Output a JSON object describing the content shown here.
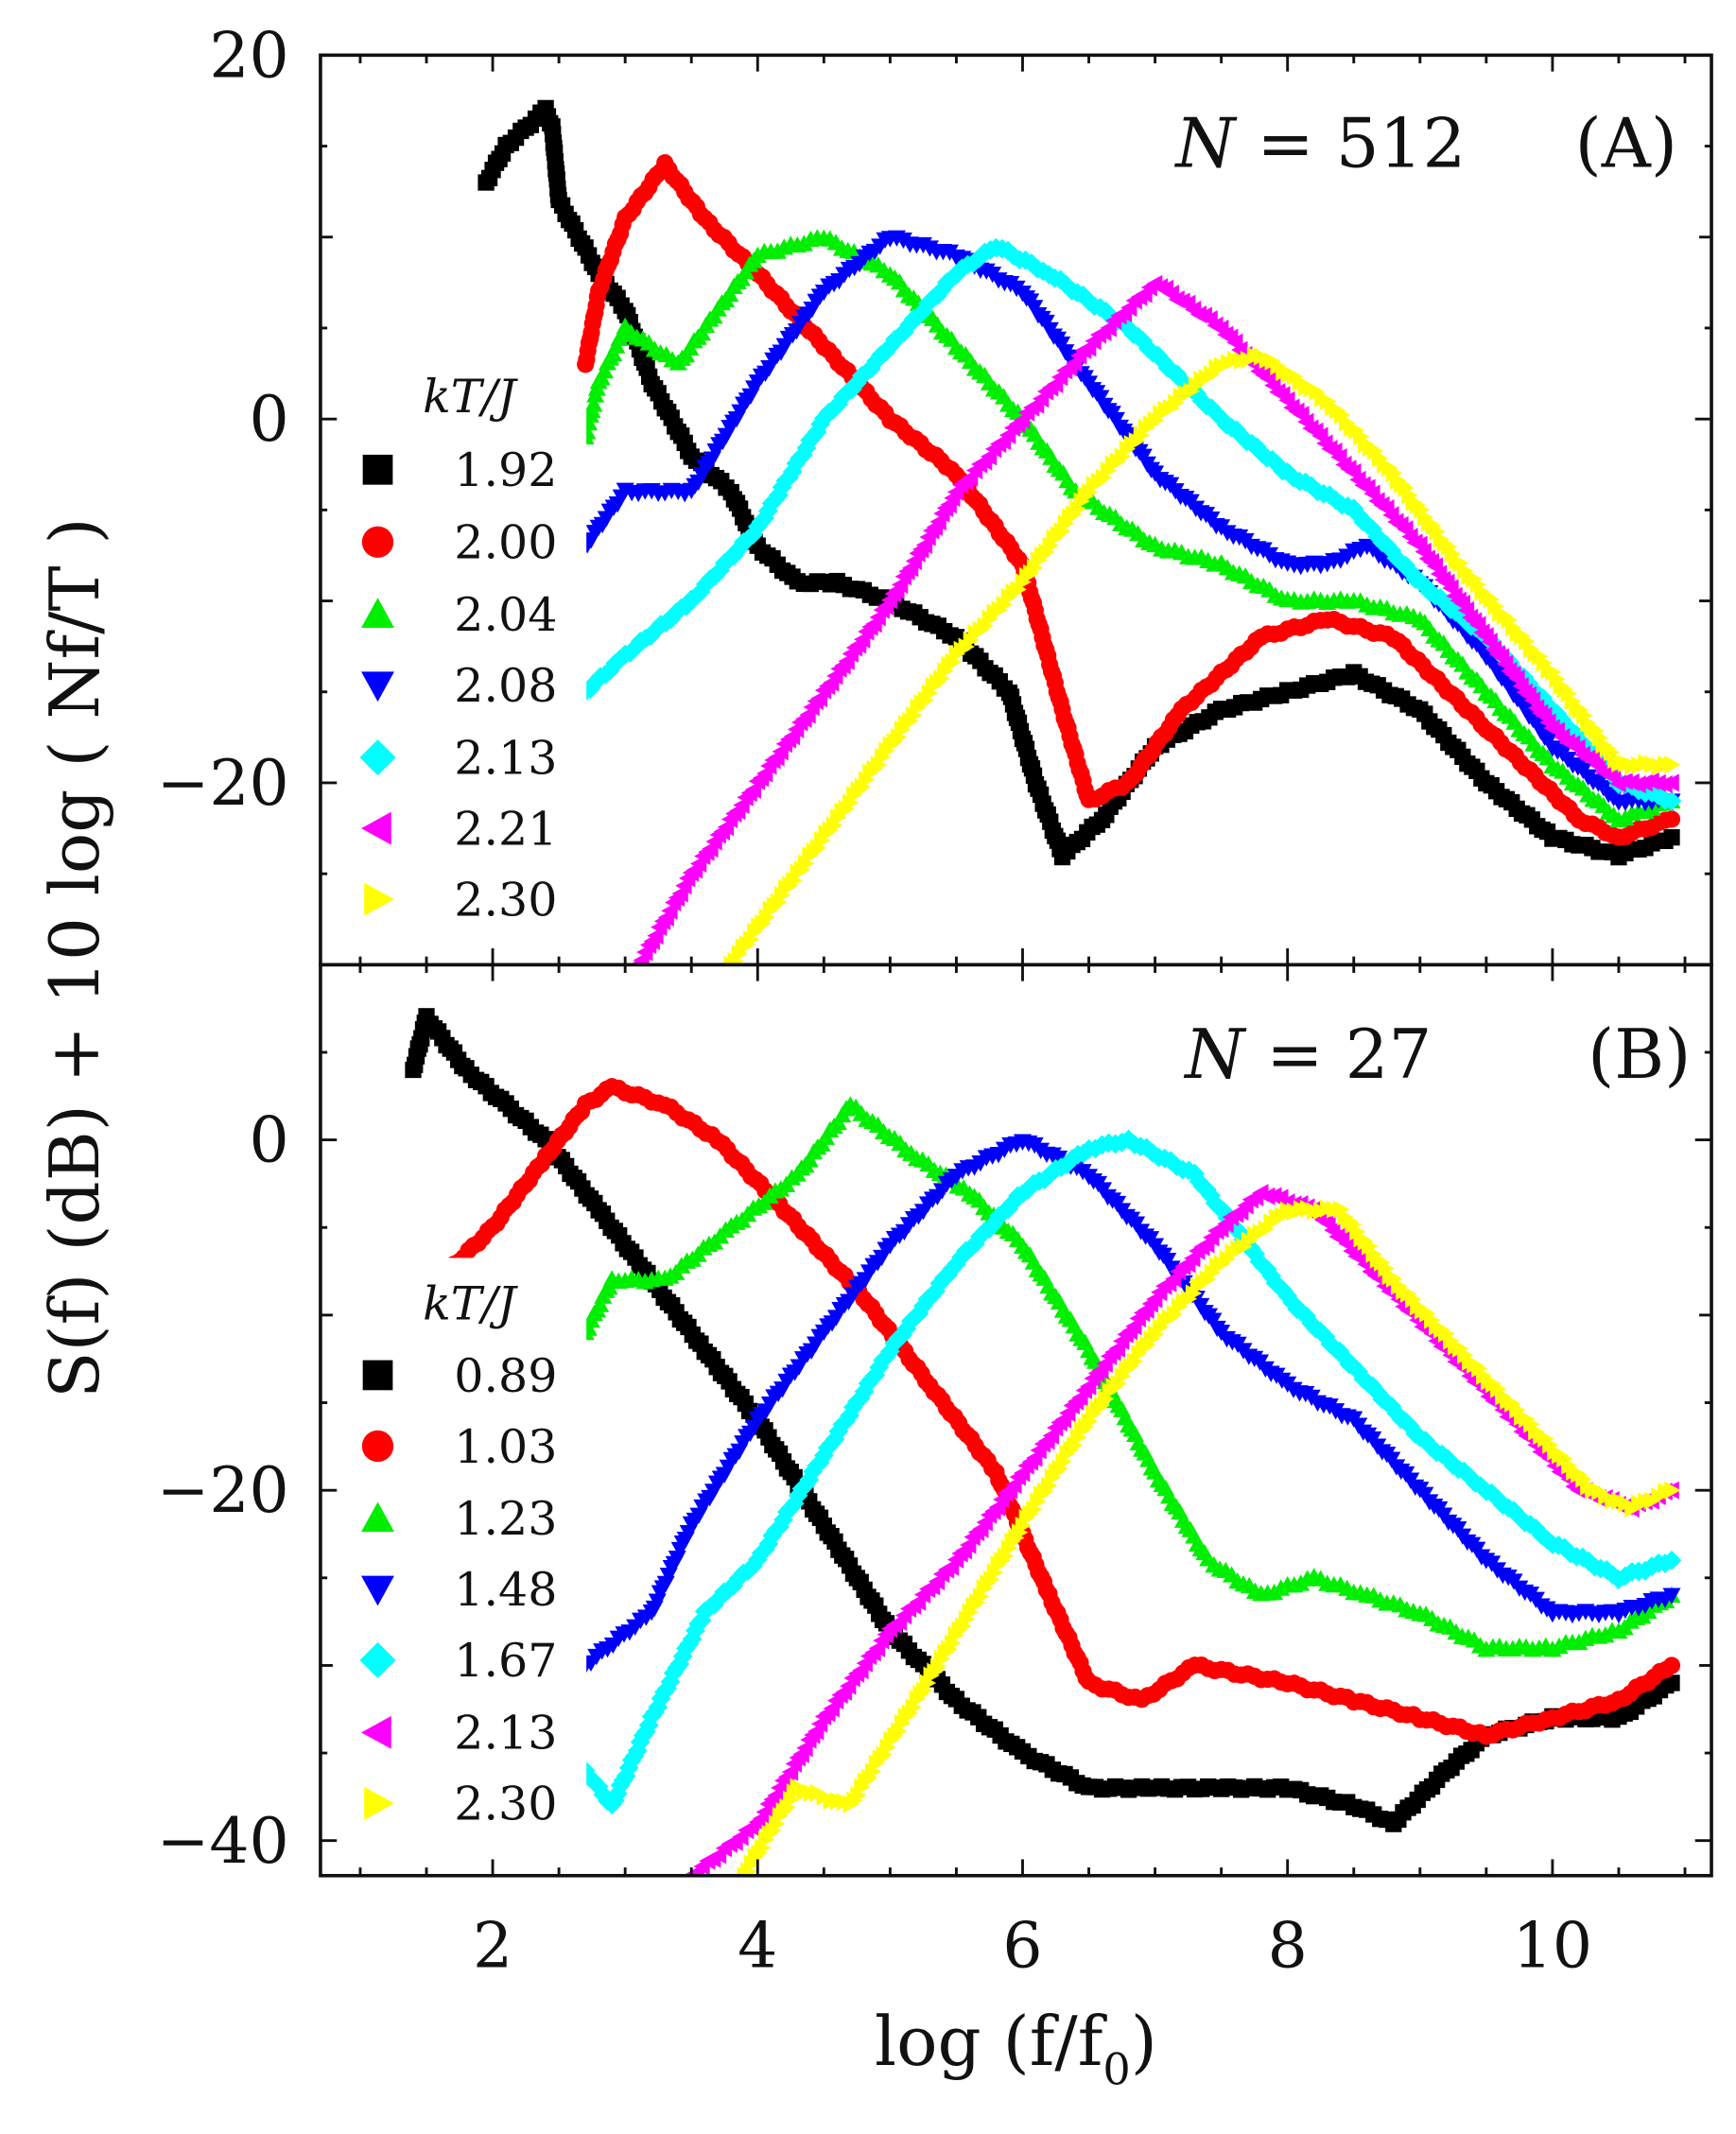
{
  "y_label": "S(f) (dB) + 10 log ( Nf/T )",
  "x_label": "log (f/f",
  "x_label_sub": "0",
  "x_label_end": ")",
  "chart_data": [
    {
      "type": "scatter",
      "panel": "A",
      "annotation_n": "N = 512",
      "annotation_panel": "(A)",
      "legend_title": "kT/J",
      "legend_placement": "left",
      "xlim": [
        0.7,
        11.2
      ],
      "ylim": [
        -30,
        20
      ],
      "xticks": [
        2,
        4,
        6,
        8,
        10
      ],
      "yticks": [
        20,
        0,
        -20
      ],
      "ytick_labels": [
        "20",
        "0",
        "−20"
      ],
      "series": [
        {
          "name": "1.92",
          "color": "#000000",
          "marker": "square",
          "x": [
            1.95,
            2.1,
            2.4,
            2.45,
            2.5,
            2.8,
            3,
            3.2,
            3.5,
            3.8,
            4,
            4.3,
            4.6,
            5,
            5.5,
            5.9,
            6.1,
            6.3,
            6.6,
            7,
            7.5,
            8,
            8.5,
            9,
            9.5,
            10,
            10.5,
            10.9
          ],
          "y": [
            13,
            15,
            17,
            16,
            12,
            8,
            6,
            2,
            -2,
            -4,
            -7,
            -9,
            -9,
            -10,
            -12,
            -15,
            -20,
            -24,
            -22,
            -18,
            -16,
            -15,
            -14,
            -16,
            -20,
            -23,
            -24,
            -23
          ]
        },
        {
          "name": "2.00",
          "color": "#ff0000",
          "marker": "circle",
          "x": [
            2.7,
            2.8,
            3,
            3.3,
            3.6,
            4,
            4.5,
            5,
            5.5,
            6,
            6.3,
            6.5,
            6.8,
            7.2,
            7.8,
            8.3,
            8.8,
            9.5,
            10.2,
            10.5,
            10.9
          ],
          "y": [
            3,
            7,
            11,
            14,
            11,
            8,
            4,
            0,
            -3,
            -8,
            -16,
            -21,
            -20,
            -16,
            -12,
            -11,
            -12,
            -17,
            -22,
            -23,
            -22
          ]
        },
        {
          "name": "2.04",
          "color": "#00ee00",
          "marker": "triangle-up",
          "x": [
            2.7,
            2.8,
            3,
            3.4,
            3.7,
            4,
            4.5,
            5,
            5.5,
            6,
            6.4,
            7,
            7.5,
            8,
            8.5,
            9,
            9.5,
            10,
            10.5,
            10.9
          ],
          "y": [
            -1,
            2,
            5,
            3,
            6,
            9,
            10,
            8,
            4,
            0,
            -4,
            -7,
            -8,
            -10,
            -10,
            -11,
            -15,
            -19,
            -22,
            -21
          ]
        },
        {
          "name": "2.08",
          "color": "#0000ff",
          "marker": "triangle-down",
          "x": [
            2.6,
            2.8,
            3,
            3.5,
            4,
            4.5,
            5,
            5.5,
            6,
            6.5,
            7,
            7.5,
            8,
            8.3,
            8.6,
            9,
            9.5,
            10,
            10.5,
            10.9
          ],
          "y": [
            -8,
            -6,
            -4,
            -4,
            2,
            7,
            10,
            9,
            7,
            2,
            -3,
            -6,
            -8,
            -8,
            -7,
            -9,
            -13,
            -18,
            -21,
            -21
          ]
        },
        {
          "name": "2.13",
          "color": "#00ffff",
          "marker": "diamond",
          "x": [
            2.7,
            3,
            3.5,
            4,
            4.5,
            5,
            5.5,
            5.8,
            6.2,
            6.8,
            7.5,
            8,
            8.5,
            9,
            9.5,
            10,
            10.5,
            10.9
          ],
          "y": [
            -15,
            -13,
            -10,
            -6,
            0,
            4,
            8,
            9.5,
            8,
            5,
            0,
            -3,
            -5,
            -9,
            -12,
            -16,
            -20,
            -21
          ]
        },
        {
          "name": "2.21",
          "color": "#ff00ff",
          "marker": "triangle-left",
          "x": [
            3.1,
            3.5,
            4,
            4.5,
            5,
            5.5,
            6,
            6.5,
            7,
            7.5,
            8,
            8.5,
            9,
            9.5,
            10,
            10.5,
            10.9
          ],
          "y": [
            -30,
            -25,
            -20,
            -15,
            -10,
            -4,
            0,
            4,
            7.5,
            5,
            1,
            -3,
            -7,
            -12,
            -17,
            -20,
            -20
          ]
        },
        {
          "name": "2.30",
          "color": "#ffff00",
          "marker": "triangle-right",
          "x": [
            3.8,
            4.3,
            5,
            5.5,
            6,
            6.5,
            7,
            7.5,
            7.8,
            8.3,
            8.8,
            9.3,
            10,
            10.5,
            10.9
          ],
          "y": [
            -30,
            -25,
            -18,
            -13,
            -9,
            -4,
            0,
            3,
            3.5,
            1,
            -3,
            -8,
            -14,
            -19,
            -19
          ]
        }
      ]
    },
    {
      "type": "scatter",
      "panel": "B",
      "annotation_n": "N = 27",
      "annotation_panel": "(B)",
      "legend_title": "kT/J",
      "legend_placement": "left",
      "xlim": [
        0.7,
        11.2
      ],
      "ylim": [
        -42,
        10
      ],
      "xticks": [
        2,
        4,
        6,
        8,
        10
      ],
      "xtick_labels": [
        "2",
        "4",
        "6",
        "8",
        "10"
      ],
      "yticks": [
        0,
        -20,
        -40
      ],
      "ytick_labels": [
        "0",
        "−20",
        "−40"
      ],
      "series": [
        {
          "name": "0.89",
          "color": "#000000",
          "marker": "square",
          "x": [
            1.4,
            1.5,
            1.8,
            2.1,
            2.4,
            2.8,
            3.2,
            3.6,
            4,
            4.5,
            5,
            5.5,
            6,
            6.5,
            7,
            7.5,
            8,
            8.5,
            8.8,
            9.2,
            9.5,
            10,
            10.5,
            10.9
          ],
          "y": [
            4,
            7,
            4,
            2,
            0,
            -4,
            -8,
            -12,
            -16,
            -22,
            -28,
            -32,
            -35,
            -37,
            -37,
            -37,
            -37,
            -38,
            -39,
            -36,
            -34,
            -33,
            -33,
            -31
          ]
        },
        {
          "name": "1.03",
          "color": "#ff0000",
          "marker": "circle",
          "x": [
            1.6,
            2,
            2.4,
            2.7,
            2.9,
            3.3,
            3.7,
            4.2,
            4.8,
            5.3,
            5.8,
            6.2,
            6.5,
            6.9,
            7.3,
            8,
            8.5,
            9,
            9.5,
            10,
            10.5,
            10.9
          ],
          "y": [
            -8,
            -5,
            -1,
            2,
            3,
            2,
            0,
            -4,
            -9,
            -14,
            -19,
            -26,
            -31,
            -32,
            -30,
            -31,
            -32,
            -33,
            -34,
            -33,
            -32,
            -30
          ]
        },
        {
          "name": "1.23",
          "color": "#00ee00",
          "marker": "triangle-up",
          "x": [
            2.7,
            2.9,
            3.3,
            3.8,
            4.3,
            4.7,
            5.2,
            5.6,
            6,
            6.5,
            7,
            7.4,
            7.8,
            8.2,
            8.6,
            9,
            9.5,
            10,
            10.5,
            10.9
          ],
          "y": [
            -11,
            -8,
            -8,
            -5,
            -2,
            2,
            -1,
            -3,
            -6,
            -12,
            -19,
            -24,
            -26,
            -25,
            -26,
            -27,
            -29,
            -29,
            -28,
            -26
          ]
        },
        {
          "name": "1.48",
          "color": "#0000ff",
          "marker": "triangle-down",
          "x": [
            2.7,
            3.2,
            3.5,
            4,
            4.5,
            5,
            5.5,
            6,
            6.5,
            7,
            7.5,
            8,
            8.5,
            9,
            9.5,
            10,
            10.5,
            10.9
          ],
          "y": [
            -30,
            -27,
            -22,
            -16,
            -11,
            -6,
            -2,
            0,
            -2,
            -6,
            -11,
            -14,
            -16,
            -20,
            -24,
            -27,
            -27,
            -26
          ]
        },
        {
          "name": "1.67",
          "color": "#00ffff",
          "marker": "diamond",
          "x": [
            2.7,
            2.9,
            3.2,
            3.6,
            4,
            4.5,
            5,
            5.5,
            6,
            6.5,
            6.8,
            7.3,
            8,
            8.5,
            9,
            9.5,
            10,
            10.5,
            10.9
          ],
          "y": [
            -36,
            -38,
            -33,
            -27,
            -24,
            -18,
            -12,
            -7,
            -3,
            -0.5,
            0,
            -2,
            -9,
            -13,
            -17,
            -20,
            -23,
            -25,
            -24
          ]
        },
        {
          "name": "2.13",
          "color": "#ff00ff",
          "marker": "triangle-left",
          "x": [
            3.5,
            4,
            4.5,
            5,
            5.5,
            6,
            6.5,
            7,
            7.5,
            7.8,
            8.2,
            8.7,
            9.2,
            9.7,
            10.2,
            10.6,
            10.9
          ],
          "y": [
            -42,
            -39,
            -33,
            -28,
            -24,
            -19,
            -14,
            -9,
            -5,
            -3,
            -4,
            -8,
            -12,
            -16,
            -20,
            -21,
            -20
          ]
        },
        {
          "name": "2.30",
          "color": "#ffff00",
          "marker": "triangle-right",
          "x": [
            3.9,
            4.3,
            4.7,
            5.2,
            5.6,
            6,
            6.5,
            7,
            7.5,
            8,
            8.4,
            8.8,
            9.3,
            9.8,
            10.3,
            10.6,
            10.9
          ],
          "y": [
            -42,
            -37,
            -38,
            -32,
            -27,
            -22,
            -16,
            -11,
            -7,
            -4,
            -4,
            -8,
            -12,
            -16,
            -20,
            -21,
            -20
          ]
        }
      ]
    }
  ]
}
